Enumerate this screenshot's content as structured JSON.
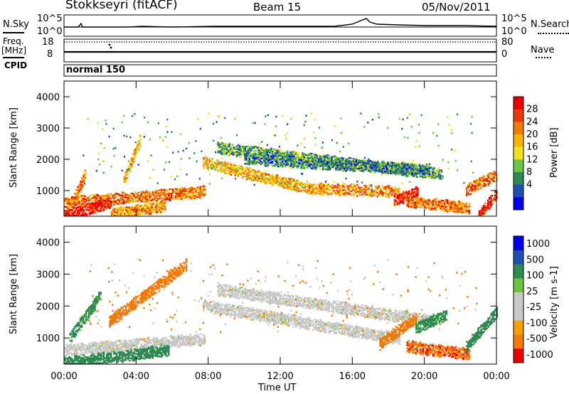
{
  "header": {
    "station": "Stokkseyri (fitACF)",
    "beam": "Beam 15",
    "date": "05/Nov/2011"
  },
  "top_panels": {
    "nsky_label": "N.Sky",
    "nsky_ticks": [
      "10^5",
      "10^0"
    ],
    "nsearch_label": "N.Search",
    "nsearch_ticks": [
      "10^5",
      "10^0"
    ],
    "freq_label": "Freq.",
    "freq_unit": "[MHz]",
    "freq_ticks": [
      "18",
      "8"
    ],
    "nave_label": "Nave",
    "nave_ticks": [
      "80",
      "0"
    ],
    "cpid_label": "CPID",
    "cpid_value": "normal 150"
  },
  "colors": {
    "power": [
      "#0000e6",
      "#1e4fb4",
      "#2f8a52",
      "#6cc440",
      "#f0e020",
      "#f5b40a",
      "#f07a0a",
      "#e63c0a",
      "#e60000"
    ],
    "velocity": [
      "#e60000",
      "#f07a0a",
      "#f5a000",
      "#c8c8c8",
      "#c8c8c8",
      "#6cc440",
      "#2f8a52",
      "#1e4fb4",
      "#0000e6"
    ],
    "ground": "#bfbfbf"
  },
  "chart_data": [
    {
      "type": "heatmap",
      "name": "power",
      "ylabel": "Slant Range [km]",
      "xlabel": "Time UT",
      "x_ticks": [
        "00:00",
        "04:00",
        "08:00",
        "12:00",
        "16:00",
        "20:00",
        "00:00"
      ],
      "x_tick_hours": [
        0,
        4,
        8,
        12,
        16,
        20,
        24
      ],
      "y_ticks": [
        1000,
        2000,
        3000,
        4000
      ],
      "xlim": [
        0,
        24
      ],
      "ylim": [
        180,
        4500
      ],
      "colorbar_label": "Power [dB]",
      "colorbar_ticks": [
        "28",
        "24",
        "20",
        "16",
        "12",
        "8",
        "4"
      ],
      "colorbar_range": [
        0,
        30
      ],
      "bands": [
        {
          "t0": 0.0,
          "t1": 7.8,
          "r0": 600,
          "r1": 950,
          "v": 22
        },
        {
          "t0": 0.0,
          "t1": 2.6,
          "r0": 200,
          "r1": 600,
          "v": 27
        },
        {
          "t0": 2.6,
          "t1": 5.6,
          "r0": 250,
          "r1": 480,
          "v": 20
        },
        {
          "t0": 0.4,
          "t1": 1.2,
          "r0": 500,
          "r1": 1600,
          "v": 22
        },
        {
          "t0": 3.3,
          "t1": 4.2,
          "r0": 1300,
          "r1": 2600,
          "v": 18
        },
        {
          "t0": 7.7,
          "t1": 13.5,
          "r0": 1900,
          "r1": 1050,
          "v": 18
        },
        {
          "t0": 13.5,
          "t1": 18.6,
          "r0": 1050,
          "r1": 950,
          "v": 20
        },
        {
          "t0": 8.5,
          "t1": 21.0,
          "r0": 2350,
          "r1": 1500,
          "v": 10
        },
        {
          "t0": 10.0,
          "t1": 20.3,
          "r0": 2000,
          "r1": 1650,
          "v": 8
        },
        {
          "t0": 18.3,
          "t1": 19.6,
          "r0": 650,
          "r1": 950,
          "v": 26
        },
        {
          "t0": 19.0,
          "t1": 22.5,
          "r0": 650,
          "r1": 420,
          "v": 22
        },
        {
          "t0": 22.3,
          "t1": 24.0,
          "r0": 1000,
          "r1": 1500,
          "v": 22
        },
        {
          "t0": 23.0,
          "t1": 24.0,
          "r0": 200,
          "r1": 900,
          "v": 27
        }
      ]
    },
    {
      "type": "heatmap",
      "name": "velocity",
      "ylabel": "Slant Range [km]",
      "xlabel": "Time UT",
      "x_ticks": [
        "00:00",
        "04:00",
        "08:00",
        "12:00",
        "16:00",
        "20:00",
        "00:00"
      ],
      "x_tick_hours": [
        0,
        4,
        8,
        12,
        16,
        20,
        24
      ],
      "y_ticks": [
        1000,
        2000,
        3000,
        4000
      ],
      "xlim": [
        0,
        24
      ],
      "ylim": [
        180,
        4500
      ],
      "colorbar_label": "Velocity [m s-1]",
      "colorbar_ticks": [
        "1000",
        "500",
        "100",
        "25",
        "-25",
        "-100",
        "-500",
        "-1000"
      ],
      "colorbar_range": [
        -1000,
        1000
      ],
      "bands": [
        {
          "t0": 0.0,
          "t1": 7.8,
          "r0": 600,
          "r1": 950,
          "v": 0
        },
        {
          "t0": 0.0,
          "t1": 5.8,
          "r0": 200,
          "r1": 600,
          "v": 300
        },
        {
          "t0": 0.3,
          "t1": 2.0,
          "r0": 1000,
          "r1": 2300,
          "v": 150
        },
        {
          "t0": 2.5,
          "t1": 6.8,
          "r0": 1500,
          "r1": 3300,
          "v": -300
        },
        {
          "t0": 7.7,
          "t1": 18.6,
          "r0": 2000,
          "r1": 950,
          "v": 0
        },
        {
          "t0": 8.5,
          "t1": 20.5,
          "r0": 2500,
          "r1": 1500,
          "v": 0
        },
        {
          "t0": 17.5,
          "t1": 19.5,
          "r0": 800,
          "r1": 1600,
          "v": -300
        },
        {
          "t0": 19.0,
          "t1": 22.5,
          "r0": 720,
          "r1": 470,
          "v": -400
        },
        {
          "t0": 19.5,
          "t1": 21.2,
          "r0": 1300,
          "r1": 1700,
          "v": 150
        },
        {
          "t0": 22.3,
          "t1": 24.0,
          "r0": 700,
          "r1": 1800,
          "v": 300
        }
      ]
    }
  ]
}
